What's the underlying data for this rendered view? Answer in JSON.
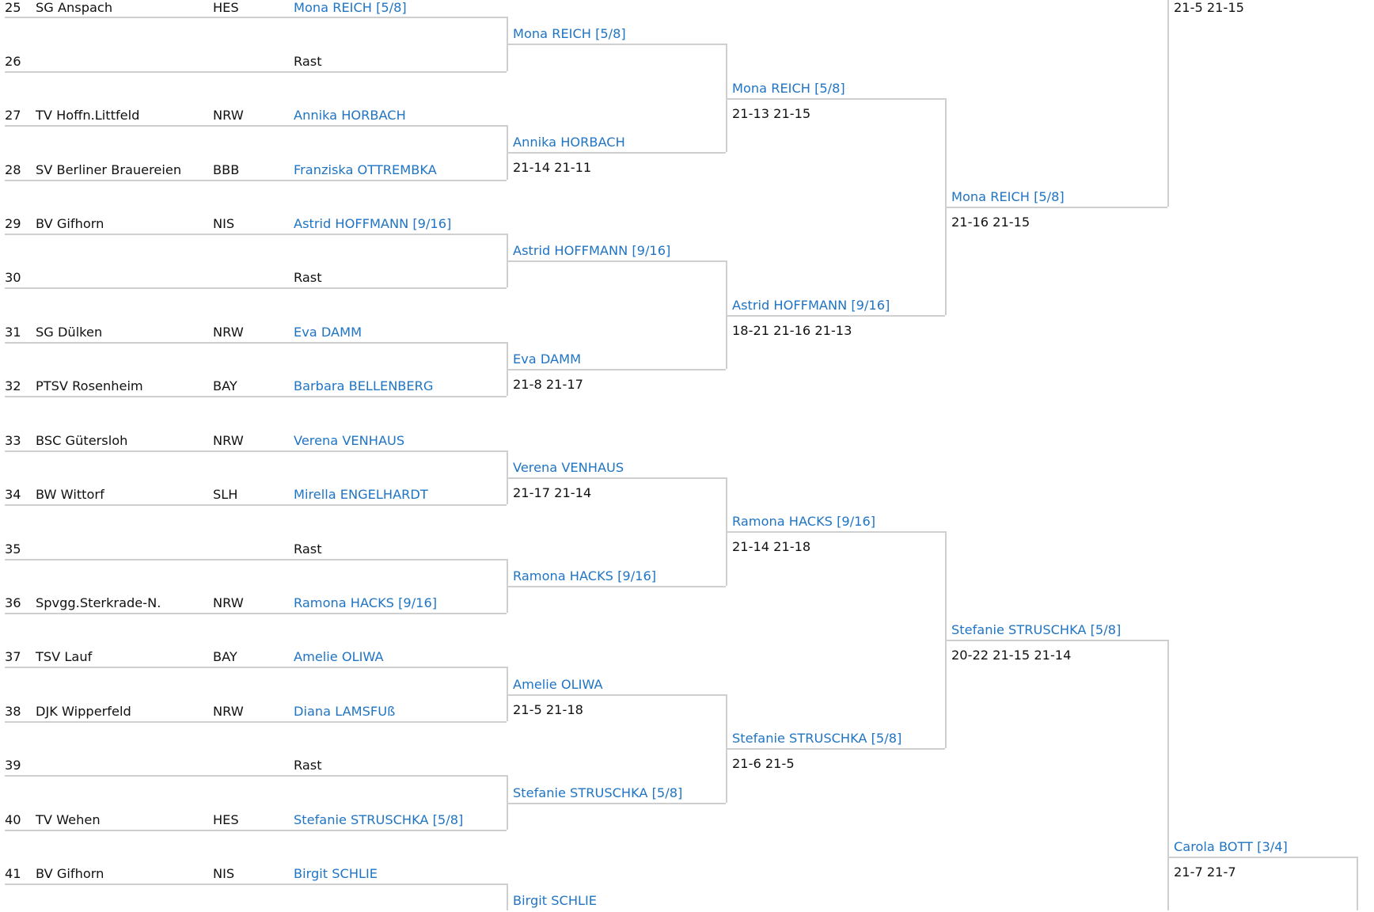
{
  "colors": {
    "link": "#1f74c4",
    "text": "#111111",
    "bracket_line": "#cfcfcf"
  },
  "round1": [
    {
      "num": "25",
      "club": "SG Anspach",
      "state": "HES",
      "player": "Mona REICH [5/8]",
      "link": true
    },
    {
      "num": "26",
      "club": "",
      "state": "",
      "player": "Rast",
      "link": false
    },
    {
      "num": "27",
      "club": "TV Hoffn.Littfeld",
      "state": "NRW",
      "player": "Annika HORBACH",
      "link": true
    },
    {
      "num": "28",
      "club": "SV Berliner Brauereien",
      "state": "BBB",
      "player": "Franziska OTTREMBKA",
      "link": true
    },
    {
      "num": "29",
      "club": "BV Gifhorn",
      "state": "NIS",
      "player": "Astrid HOFFMANN [9/16]",
      "link": true
    },
    {
      "num": "30",
      "club": "",
      "state": "",
      "player": "Rast",
      "link": false
    },
    {
      "num": "31",
      "club": "SG Dülken",
      "state": "NRW",
      "player": "Eva DAMM",
      "link": true
    },
    {
      "num": "32",
      "club": "PTSV Rosenheim",
      "state": "BAY",
      "player": "Barbara BELLENBERG",
      "link": true
    },
    {
      "num": "33",
      "club": "BSC Gütersloh",
      "state": "NRW",
      "player": "Verena VENHAUS",
      "link": true
    },
    {
      "num": "34",
      "club": "BW Wittorf",
      "state": "SLH",
      "player": "Mirella ENGELHARDT",
      "link": true
    },
    {
      "num": "35",
      "club": "",
      "state": "",
      "player": "Rast",
      "link": false
    },
    {
      "num": "36",
      "club": "Spvgg.Sterkrade-N.",
      "state": "NRW",
      "player": "Ramona HACKS [9/16]",
      "link": true
    },
    {
      "num": "37",
      "club": "TSV Lauf",
      "state": "BAY",
      "player": "Amelie OLIWA",
      "link": true
    },
    {
      "num": "38",
      "club": "DJK Wipperfeld",
      "state": "NRW",
      "player": "Diana LAMSFUß",
      "link": true
    },
    {
      "num": "39",
      "club": "",
      "state": "",
      "player": "Rast",
      "link": false
    },
    {
      "num": "40",
      "club": "TV Wehen",
      "state": "HES",
      "player": "Stefanie STRUSCHKA [5/8]",
      "link": true
    },
    {
      "num": "41",
      "club": "BV Gifhorn",
      "state": "NIS",
      "player": "Birgit SCHLIE",
      "link": true
    }
  ],
  "rounds": [
    [
      {
        "winner": "Mona REICH [5/8]",
        "score": ""
      },
      {
        "winner": "Annika HORBACH",
        "score": "21-14 21-11"
      },
      {
        "winner": "Astrid HOFFMANN [9/16]",
        "score": ""
      },
      {
        "winner": "Eva DAMM",
        "score": "21-8 21-17"
      },
      {
        "winner": "Verena VENHAUS",
        "score": "21-17 21-14"
      },
      {
        "winner": "Ramona HACKS [9/16]",
        "score": ""
      },
      {
        "winner": "Amelie OLIWA",
        "score": "21-5 21-18"
      },
      {
        "winner": "Stefanie STRUSCHKA [5/8]",
        "score": ""
      },
      {
        "winner": "Birgit SCHLIE",
        "score": ""
      }
    ],
    [
      {
        "winner": "Mona REICH [5/8]",
        "score": "21-13 21-15"
      },
      {
        "winner": "Astrid HOFFMANN [9/16]",
        "score": "18-21 21-16 21-13"
      },
      {
        "winner": "Ramona HACKS [9/16]",
        "score": "21-14 21-18"
      },
      {
        "winner": "Stefanie STRUSCHKA [5/8]",
        "score": "21-6 21-5"
      }
    ],
    [
      {
        "winner": "Mona REICH [5/8]",
        "score": "21-16 21-15"
      },
      {
        "winner": "Stefanie STRUSCHKA [5/8]",
        "score": "20-22 21-15 21-14"
      }
    ],
    [
      {
        "winner": "",
        "score": "21-5 21-15"
      },
      {
        "winner": "Carola BOTT [3/4]",
        "score": "21-7 21-7"
      }
    ]
  ]
}
